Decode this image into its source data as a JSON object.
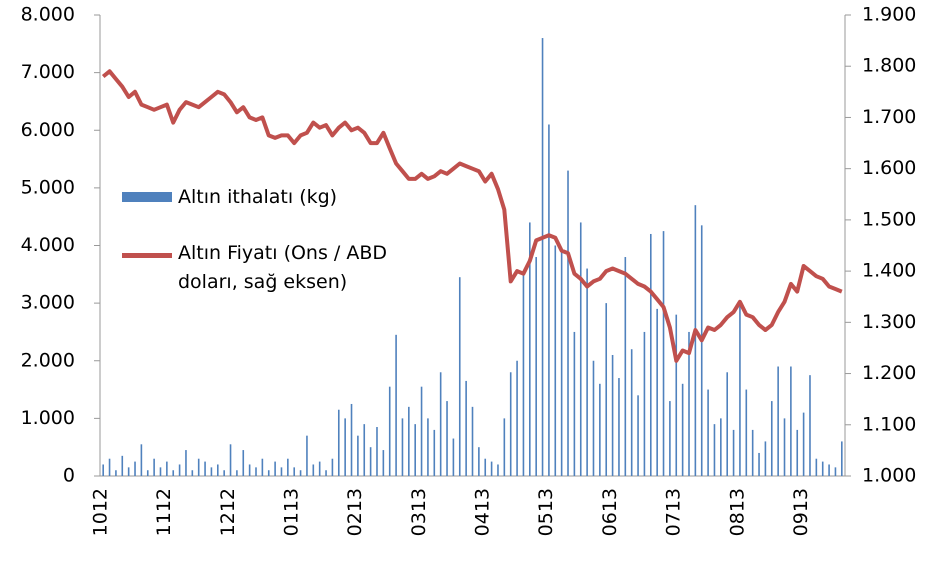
{
  "chart_data": {
    "type": "bar-line",
    "categories": [
      "1012",
      null,
      null,
      null,
      null,
      null,
      null,
      null,
      null,
      null,
      "1112",
      null,
      null,
      null,
      null,
      null,
      null,
      null,
      null,
      null,
      "1212",
      null,
      null,
      null,
      null,
      null,
      null,
      null,
      null,
      null,
      "0113",
      null,
      null,
      null,
      null,
      null,
      null,
      null,
      null,
      null,
      "0213",
      null,
      null,
      null,
      null,
      null,
      null,
      null,
      null,
      null,
      "0313",
      null,
      null,
      null,
      null,
      null,
      null,
      null,
      null,
      null,
      "0413",
      null,
      null,
      null,
      null,
      null,
      null,
      null,
      null,
      null,
      "0513",
      null,
      null,
      null,
      null,
      null,
      null,
      null,
      null,
      null,
      "0613",
      null,
      null,
      null,
      null,
      null,
      null,
      null,
      null,
      null,
      "0713",
      null,
      null,
      null,
      null,
      null,
      null,
      null,
      null,
      null,
      "0813",
      null,
      null,
      null,
      null,
      null,
      null,
      null,
      null,
      null,
      "0913",
      null,
      null,
      null,
      null,
      null,
      null
    ],
    "series": [
      {
        "name": "Altın ithalatı (kg)",
        "color": "#4f81bd",
        "type": "bar",
        "values": [
          200,
          300,
          100,
          350,
          150,
          250,
          550,
          100,
          300,
          150,
          250,
          100,
          200,
          450,
          100,
          300,
          250,
          150,
          200,
          100,
          550,
          100,
          450,
          200,
          150,
          300,
          100,
          250,
          150,
          300,
          150,
          100,
          700,
          200,
          250,
          100,
          300,
          1150,
          1000,
          1250,
          700,
          900,
          500,
          850,
          450,
          1550,
          2450,
          1000,
          1200,
          900,
          1550,
          1000,
          800,
          1800,
          1300,
          650,
          3450,
          1650,
          1200,
          500,
          300,
          250,
          200,
          1000,
          1800,
          2000,
          3550,
          4400,
          3800,
          7600,
          6100,
          4000,
          3900,
          5300,
          2500,
          4400,
          3600,
          2000,
          1600,
          3000,
          2100,
          1700,
          3800,
          2200,
          1400,
          2500,
          4200,
          2900,
          4250,
          1300,
          2800,
          1600,
          2500,
          4700,
          4350,
          1500,
          900,
          1000,
          1800,
          800,
          3050,
          1500,
          800,
          400,
          600,
          1300,
          1900,
          1000,
          1900,
          800,
          1100,
          1750,
          300,
          250,
          200,
          150,
          600
        ]
      },
      {
        "name": "Altın Fiyatı (Ons / ABD doları, sağ eksen)",
        "color": "#c0504d",
        "type": "line",
        "axis": "y2",
        "values": [
          1780,
          1790,
          1775,
          1760,
          1740,
          1750,
          1725,
          1720,
          1715,
          1720,
          1725,
          1690,
          1715,
          1730,
          1725,
          1720,
          1730,
          1740,
          1750,
          1745,
          1730,
          1710,
          1720,
          1700,
          1695,
          1700,
          1665,
          1660,
          1665,
          1665,
          1650,
          1665,
          1670,
          1690,
          1680,
          1685,
          1665,
          1680,
          1690,
          1675,
          1680,
          1670,
          1650,
          1650,
          1670,
          1640,
          1610,
          1595,
          1580,
          1580,
          1590,
          1580,
          1585,
          1595,
          1590,
          1600,
          1610,
          1605,
          1600,
          1595,
          1575,
          1590,
          1560,
          1520,
          1380,
          1400,
          1395,
          1420,
          1460,
          1465,
          1470,
          1465,
          1440,
          1435,
          1395,
          1385,
          1370,
          1380,
          1385,
          1400,
          1405,
          1400,
          1395,
          1385,
          1375,
          1370,
          1360,
          1345,
          1330,
          1290,
          1225,
          1245,
          1240,
          1285,
          1265,
          1290,
          1285,
          1295,
          1310,
          1320,
          1340,
          1315,
          1310,
          1295,
          1285,
          1295,
          1320,
          1340,
          1375,
          1360,
          1410,
          1400,
          1390,
          1385,
          1370,
          1365,
          1360
        ]
      }
    ],
    "ylim": [
      0,
      8000
    ],
    "yticks": [
      {
        "value": 0,
        "label": "0"
      },
      {
        "value": 1000,
        "label": "1.000"
      },
      {
        "value": 2000,
        "label": "2.000"
      },
      {
        "value": 3000,
        "label": "3.000"
      },
      {
        "value": 4000,
        "label": "4.000"
      },
      {
        "value": 5000,
        "label": "5.000"
      },
      {
        "value": 6000,
        "label": "6.000"
      },
      {
        "value": 7000,
        "label": "7.000"
      },
      {
        "value": 8000,
        "label": "8.000"
      }
    ],
    "y2lim": [
      1000,
      1900
    ],
    "y2ticks": [
      {
        "value": 1000,
        "label": "1.000"
      },
      {
        "value": 1100,
        "label": "1.100"
      },
      {
        "value": 1200,
        "label": "1.200"
      },
      {
        "value": 1300,
        "label": "1.300"
      },
      {
        "value": 1400,
        "label": "1.400"
      },
      {
        "value": 1500,
        "label": "1.500"
      },
      {
        "value": 1600,
        "label": "1.600"
      },
      {
        "value": 1700,
        "label": "1.700"
      },
      {
        "value": 1800,
        "label": "1.800"
      },
      {
        "value": 1900,
        "label": "1.900"
      }
    ]
  }
}
